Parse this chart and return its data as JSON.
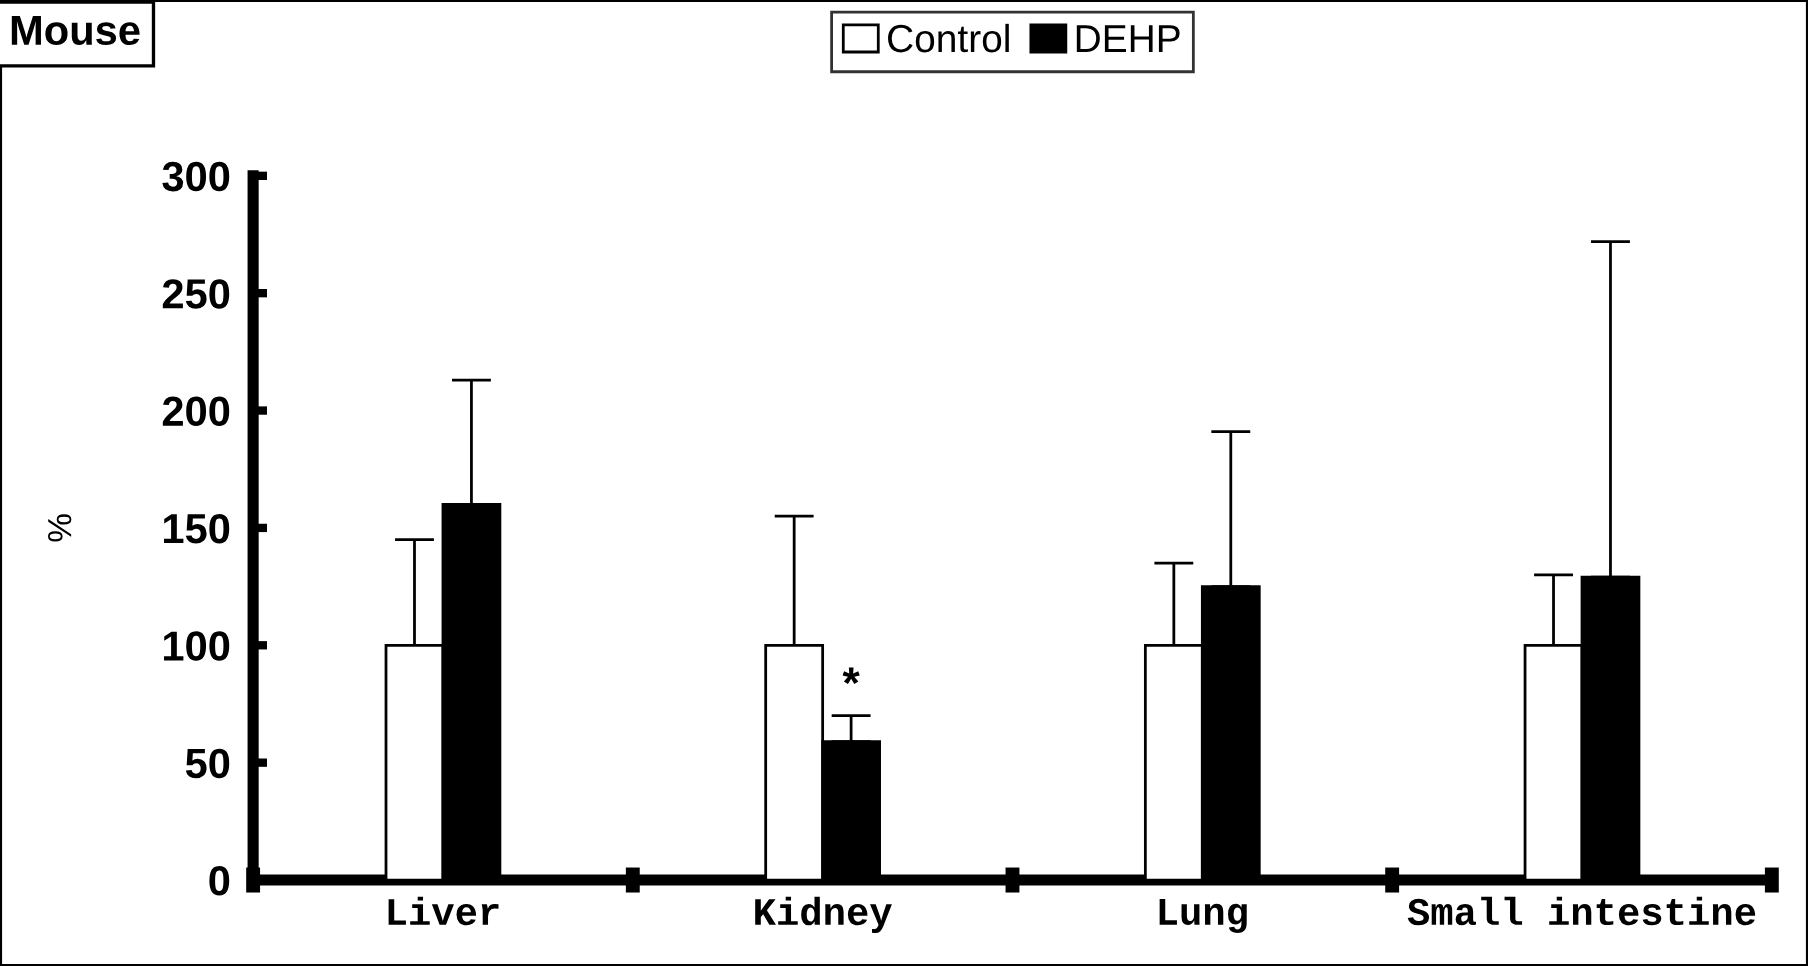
{
  "chart_data": {
    "type": "bar",
    "title": "Mouse",
    "ylabel": "%",
    "categories": [
      "Liver",
      "Kidney",
      "Lung",
      "Small intestine"
    ],
    "series": [
      {
        "name": "Control",
        "color": "#ffffff",
        "values": [
          100,
          100,
          100,
          100
        ],
        "errors": [
          [
            100,
            145
          ],
          [
            100,
            155
          ],
          [
            100,
            135
          ],
          [
            100,
            130
          ]
        ]
      },
      {
        "name": "DEHP",
        "color": "#000000",
        "values": [
          160,
          59,
          125,
          129
        ],
        "errors": [
          [
            160,
            213
          ],
          [
            59,
            70
          ],
          [
            125,
            191
          ],
          [
            129,
            272
          ]
        ]
      }
    ],
    "ylim": [
      0,
      300
    ],
    "yticks": [
      0,
      50,
      100,
      150,
      200,
      250,
      300
    ],
    "annotations": [
      {
        "text": "*",
        "x": "Kidney",
        "y": 70
      }
    ],
    "legend": "top",
    "grid": false
  }
}
